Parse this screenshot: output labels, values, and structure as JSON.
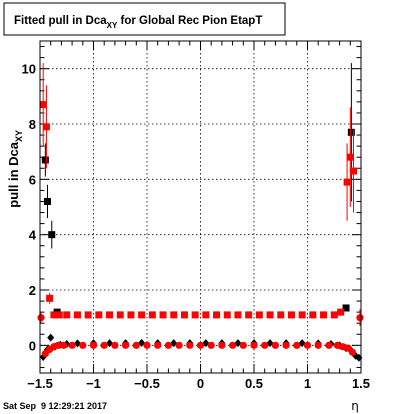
{
  "chart_data": {
    "type": "scatter",
    "title_main": "Fitted pull in Dca",
    "title_sub": "XY",
    "title_tail": " for Global Rec Pion EtapT",
    "ylabel_main": "pull in Dca",
    "ylabel_sub": "XY",
    "xlabel": "η",
    "xlim": [
      -1.5,
      1.5
    ],
    "ylim": [
      -1.0,
      11.0
    ],
    "x_ticks": [
      -1.5,
      -1.0,
      -0.5,
      0,
      0.5,
      1.0,
      1.5
    ],
    "x_tick_labels": [
      "−1.5",
      "−1",
      "−0.5",
      "0",
      "0.5",
      "1",
      "1.5"
    ],
    "y_ticks": [
      0,
      2,
      4,
      6,
      8,
      10
    ],
    "y_tick_labels": [
      "0",
      "2",
      "4",
      "6",
      "8",
      "10"
    ],
    "grid": true,
    "timestamp": "Sat Sep  9 12:29:21 2017",
    "colors": {
      "black": "#000000",
      "red": "#ff0000"
    },
    "series": [
      {
        "color": "black",
        "marker": "square",
        "points": [
          {
            "x": -1.45,
            "y": 6.7,
            "err": 0.6
          },
          {
            "x": -1.43,
            "y": 5.2,
            "err": 0.6
          },
          {
            "x": -1.39,
            "y": 4.0,
            "err": 0.5
          },
          {
            "x": -1.34,
            "y": 1.2,
            "err": 0.1
          },
          {
            "x": 1.36,
            "y": 1.35,
            "err": 0.1
          },
          {
            "x": 1.41,
            "y": 7.7,
            "err": 2.5
          }
        ]
      },
      {
        "color": "black",
        "marker": "diamond",
        "points": [
          {
            "x": -1.47,
            "y": -0.42
          },
          {
            "x": -1.43,
            "y": -0.15
          },
          {
            "x": -1.4,
            "y": 0.28
          },
          {
            "x": -1.36,
            "y": -0.05
          },
          {
            "x": -1.31,
            "y": 0.02
          },
          {
            "x": -1.25,
            "y": 0.05
          },
          {
            "x": -1.15,
            "y": 0.07
          },
          {
            "x": -1.0,
            "y": 0.08
          },
          {
            "x": -0.85,
            "y": 0.08
          },
          {
            "x": -0.7,
            "y": 0.08
          },
          {
            "x": -0.55,
            "y": 0.09
          },
          {
            "x": -0.4,
            "y": 0.08
          },
          {
            "x": -0.25,
            "y": 0.08
          },
          {
            "x": -0.1,
            "y": 0.08
          },
          {
            "x": 0.05,
            "y": 0.08
          },
          {
            "x": 0.2,
            "y": 0.08
          },
          {
            "x": 0.35,
            "y": 0.08
          },
          {
            "x": 0.5,
            "y": 0.08
          },
          {
            "x": 0.65,
            "y": 0.08
          },
          {
            "x": 0.8,
            "y": 0.08
          },
          {
            "x": 0.95,
            "y": 0.08
          },
          {
            "x": 1.1,
            "y": 0.07
          },
          {
            "x": 1.22,
            "y": 0.05
          },
          {
            "x": 1.3,
            "y": 0.0
          },
          {
            "x": 1.36,
            "y": -0.1
          },
          {
            "x": 1.41,
            "y": -0.2
          },
          {
            "x": 1.45,
            "y": -0.38
          },
          {
            "x": 1.48,
            "y": -0.45
          }
        ]
      },
      {
        "color": "red",
        "marker": "square",
        "points": [
          {
            "x": -1.47,
            "y": 8.7,
            "err": 1.5
          },
          {
            "x": -1.44,
            "y": 7.9,
            "err": 1.5
          },
          {
            "x": -1.41,
            "y": 1.7,
            "err": 0.2
          },
          {
            "x": -1.37,
            "y": 1.1,
            "err": 0.05
          },
          {
            "x": -1.32,
            "y": 1.1,
            "err": 0.05
          },
          {
            "x": -1.25,
            "y": 1.1,
            "err": 0.05
          },
          {
            "x": -1.15,
            "y": 1.1
          },
          {
            "x": -1.05,
            "y": 1.1
          },
          {
            "x": -0.95,
            "y": 1.1
          },
          {
            "x": -0.85,
            "y": 1.1
          },
          {
            "x": -0.75,
            "y": 1.1
          },
          {
            "x": -0.65,
            "y": 1.1
          },
          {
            "x": -0.55,
            "y": 1.1
          },
          {
            "x": -0.45,
            "y": 1.1
          },
          {
            "x": -0.35,
            "y": 1.1
          },
          {
            "x": -0.25,
            "y": 1.1
          },
          {
            "x": -0.15,
            "y": 1.1
          },
          {
            "x": -0.05,
            "y": 1.1
          },
          {
            "x": 0.05,
            "y": 1.1
          },
          {
            "x": 0.15,
            "y": 1.1
          },
          {
            "x": 0.25,
            "y": 1.1
          },
          {
            "x": 0.35,
            "y": 1.1
          },
          {
            "x": 0.45,
            "y": 1.1
          },
          {
            "x": 0.55,
            "y": 1.1
          },
          {
            "x": 0.65,
            "y": 1.1
          },
          {
            "x": 0.75,
            "y": 1.1
          },
          {
            "x": 0.85,
            "y": 1.1
          },
          {
            "x": 0.95,
            "y": 1.1
          },
          {
            "x": 1.05,
            "y": 1.1
          },
          {
            "x": 1.15,
            "y": 1.1
          },
          {
            "x": 1.25,
            "y": 1.1,
            "err": 0.05
          },
          {
            "x": 1.31,
            "y": 1.2,
            "err": 0.05
          },
          {
            "x": 1.37,
            "y": 5.9,
            "err": 1.4
          },
          {
            "x": 1.4,
            "y": 6.8,
            "err": 1.8
          },
          {
            "x": 1.43,
            "y": 6.3,
            "err": 1.5
          }
        ]
      },
      {
        "color": "red",
        "marker": "circle",
        "points": [
          {
            "x": -1.49,
            "y": 1.0,
            "err": 0.2
          },
          {
            "x": -1.45,
            "y": -0.3
          },
          {
            "x": -1.41,
            "y": -0.15
          },
          {
            "x": -1.37,
            "y": -0.05
          },
          {
            "x": -1.33,
            "y": 0.0
          },
          {
            "x": -1.28,
            "y": 0.0
          },
          {
            "x": -1.2,
            "y": 0.0
          },
          {
            "x": -1.1,
            "y": 0.0
          },
          {
            "x": -1.0,
            "y": 0.0
          },
          {
            "x": -0.9,
            "y": 0.0
          },
          {
            "x": -0.8,
            "y": 0.0
          },
          {
            "x": -0.7,
            "y": 0.0
          },
          {
            "x": -0.6,
            "y": 0.0
          },
          {
            "x": -0.5,
            "y": 0.0
          },
          {
            "x": -0.4,
            "y": 0.0
          },
          {
            "x": -0.3,
            "y": 0.0
          },
          {
            "x": -0.2,
            "y": 0.0
          },
          {
            "x": -0.1,
            "y": 0.0
          },
          {
            "x": 0.0,
            "y": 0.0
          },
          {
            "x": 0.1,
            "y": 0.0
          },
          {
            "x": 0.2,
            "y": 0.0
          },
          {
            "x": 0.3,
            "y": 0.0
          },
          {
            "x": 0.4,
            "y": 0.0
          },
          {
            "x": 0.5,
            "y": 0.0
          },
          {
            "x": 0.6,
            "y": 0.0
          },
          {
            "x": 0.7,
            "y": 0.0
          },
          {
            "x": 0.8,
            "y": 0.0
          },
          {
            "x": 0.9,
            "y": 0.0
          },
          {
            "x": 1.0,
            "y": 0.0
          },
          {
            "x": 1.1,
            "y": 0.0
          },
          {
            "x": 1.2,
            "y": 0.0
          },
          {
            "x": 1.28,
            "y": 0.0
          },
          {
            "x": 1.33,
            "y": -0.05
          },
          {
            "x": 1.38,
            "y": -0.1
          },
          {
            "x": 1.42,
            "y": -0.25
          },
          {
            "x": 1.49,
            "y": 1.0,
            "err": 0.3
          }
        ]
      }
    ]
  }
}
